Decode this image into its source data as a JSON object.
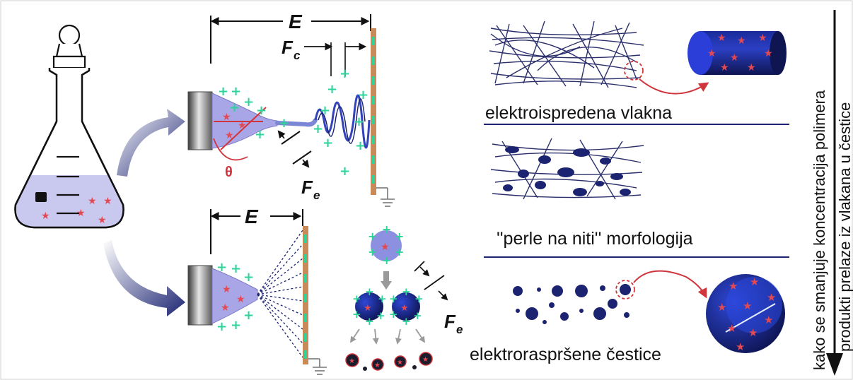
{
  "labels": {
    "field_top": "E",
    "field_bottom": "E",
    "coulomb_force_main": "F",
    "coulomb_force_sub": "c",
    "electric_force_top_main": "F",
    "electric_force_top_sub": "e",
    "electric_force_bottom_main": "F",
    "electric_force_bottom_sub": "e",
    "angle": "θ",
    "electrospun_fibers": "elektroispredena vlakna",
    "beads_on_string": "''perle na niti'' morfologija",
    "electrosprayed_particles": "elektroraspršene čestice",
    "side_arrow_line1": "kako se smanjuje koncentracija polimera",
    "side_arrow_line2": "produkti prelaze iz vlakana u čestice"
  },
  "colors": {
    "solution": "#c9c8ee",
    "navy": "#1c2472",
    "fiber": "#2b2f6b",
    "green_charge": "#2fd39a",
    "red_star": "#e04a55",
    "collector": "#c98a5a",
    "accent_red": "#d0343c"
  }
}
